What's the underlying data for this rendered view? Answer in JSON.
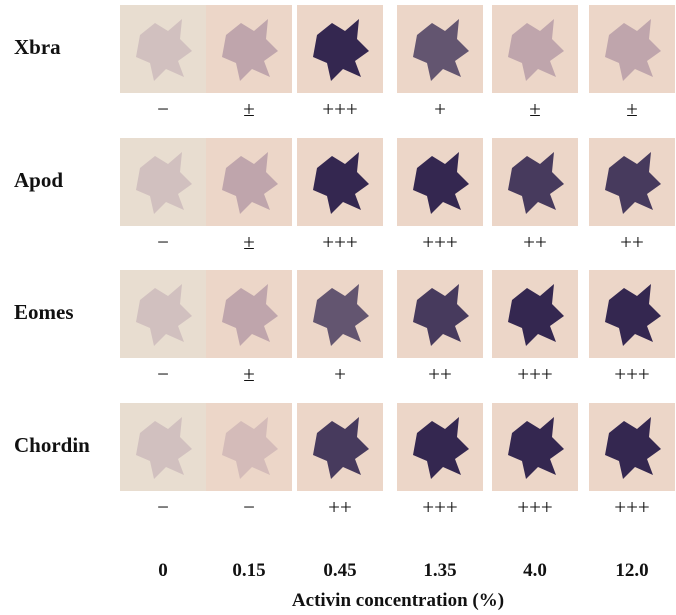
{
  "genes": [
    {
      "name": "Xbra",
      "scores": [
        "−",
        "±",
        "+++",
        "+",
        "±",
        "±"
      ]
    },
    {
      "name": "Apod",
      "scores": [
        "−",
        "±",
        "+++",
        "+++",
        "++",
        "++"
      ]
    },
    {
      "name": "Eomes",
      "scores": [
        "−",
        "±",
        "+",
        "++",
        "+++",
        "+++"
      ]
    },
    {
      "name": "Chordin",
      "scores": [
        "−",
        "−",
        "++",
        "+++",
        "+++",
        "+++"
      ]
    }
  ],
  "concentrations": [
    "0",
    "0.15",
    "0.45",
    "1.35",
    "4.0",
    "12.0"
  ],
  "xlabel": "Activin concentration  (%)",
  "colors": {
    "tile": "#ecd6c8",
    "stain": "#2a1e4a",
    "faint": "#c9a7a8"
  }
}
